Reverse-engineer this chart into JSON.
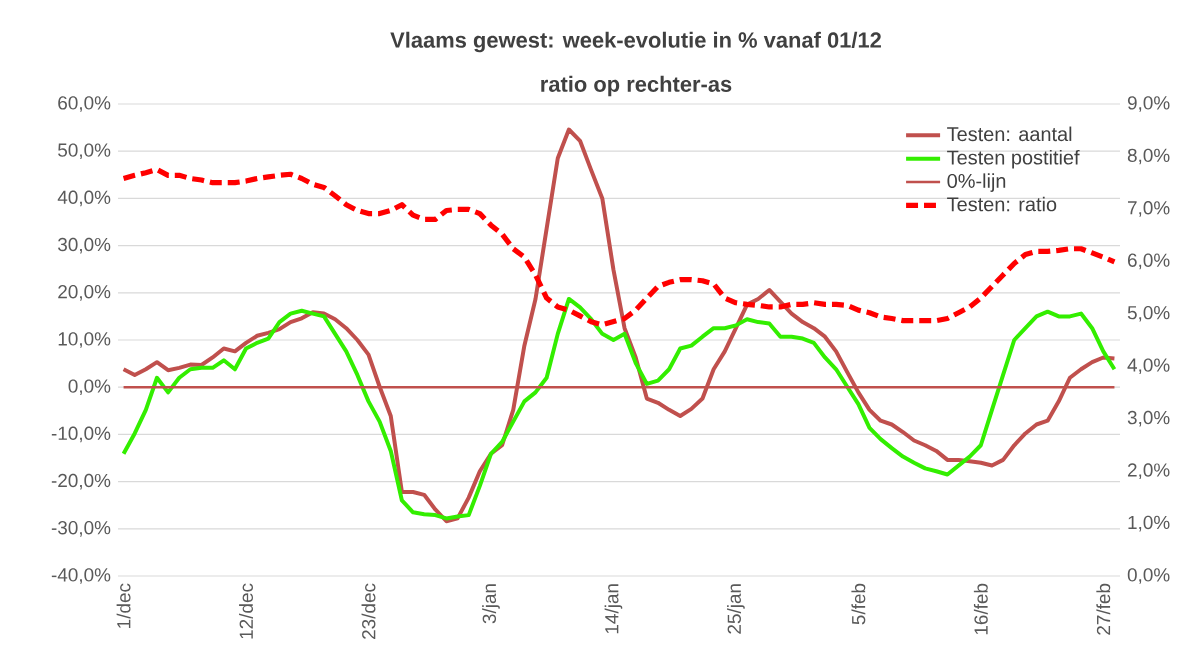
{
  "chart_data": {
    "type": "line",
    "title": "Vlaams gewest:  week-evolutie in %  vanaf 01/12",
    "subtitle": "ratio op rechter-as",
    "categories": [
      "1/dec",
      null,
      null,
      null,
      null,
      null,
      null,
      null,
      null,
      null,
      null,
      "12/dec",
      null,
      null,
      null,
      null,
      null,
      null,
      null,
      null,
      null,
      null,
      "23/dec",
      null,
      null,
      null,
      null,
      null,
      null,
      null,
      null,
      null,
      null,
      "3/jan",
      null,
      null,
      null,
      null,
      null,
      null,
      null,
      null,
      null,
      null,
      "14/jan",
      null,
      null,
      null,
      null,
      null,
      null,
      null,
      null,
      null,
      null,
      "25/jan",
      null,
      null,
      null,
      null,
      null,
      null,
      null,
      null,
      null,
      null,
      "5/feb",
      null,
      null,
      null,
      null,
      null,
      null,
      null,
      null,
      null,
      null,
      "16/feb",
      null,
      null,
      null,
      null,
      null,
      null,
      null,
      null,
      null,
      null,
      "27/feb",
      null
    ],
    "series": [
      {
        "name": "Testen: aantal",
        "color": "#c0504d",
        "line_style": "solid",
        "values": [
          3.8,
          2.6,
          3.8,
          5.3,
          3.6,
          4.1,
          4.8,
          4.7,
          6.3,
          8.2,
          7.6,
          9.4,
          10.9,
          11.5,
          12.3,
          13.8,
          14.6,
          15.9,
          15.6,
          14.4,
          12.5,
          10.0,
          6.9,
          0.1,
          -6.1,
          -22.2,
          -22.2,
          -22.8,
          -25.9,
          -28.4,
          -27.8,
          -23.4,
          -17.8,
          -14.1,
          -12.3,
          -4.8,
          8.8,
          18.7,
          33.6,
          48.5,
          54.6,
          52.2,
          46.0,
          40.0,
          24.9,
          12.5,
          6.3,
          -2.4,
          -3.3,
          -4.8,
          -6.1,
          -4.6,
          -2.4,
          3.8,
          7.6,
          12.5,
          17.5,
          18.7,
          20.6,
          18.1,
          15.6,
          13.8,
          12.5,
          10.7,
          7.6,
          3.2,
          -1.1,
          -4.8,
          -7.1,
          -7.9,
          -9.5,
          -11.3,
          -12.3,
          -13.5,
          -15.4,
          -15.4,
          -15.7,
          -16.0,
          -16.6,
          -15.4,
          -12.3,
          -9.8,
          -7.9,
          -7.1,
          -3.0,
          2.0,
          3.8,
          5.3,
          6.3,
          6.1
        ]
      },
      {
        "name": "Testen postitief",
        "color": "#33ee00",
        "line_style": "solid",
        "values": [
          -14.1,
          -9.8,
          -4.8,
          2.0,
          -1.1,
          2.0,
          3.8,
          4.1,
          4.1,
          5.7,
          3.8,
          8.2,
          9.4,
          10.3,
          13.8,
          15.6,
          16.2,
          15.6,
          15.0,
          11.3,
          7.6,
          2.6,
          -3.0,
          -7.3,
          -13.5,
          -24.0,
          -26.5,
          -26.9,
          -27.1,
          -27.8,
          -27.4,
          -27.1,
          -20.9,
          -14.1,
          -11.6,
          -7.3,
          -3.0,
          -1.1,
          2.0,
          11.3,
          18.7,
          16.9,
          14.4,
          11.3,
          10.0,
          11.3,
          5.1,
          0.7,
          1.4,
          3.8,
          8.2,
          8.8,
          10.7,
          12.5,
          12.5,
          13.1,
          14.4,
          13.8,
          13.5,
          10.7,
          10.7,
          10.3,
          9.4,
          6.3,
          3.8,
          0.1,
          -3.6,
          -8.6,
          -11.0,
          -12.9,
          -14.7,
          -16.0,
          -17.2,
          -17.8,
          -18.5,
          -16.6,
          -14.7,
          -12.3,
          -4.8,
          2.6,
          10.0,
          12.5,
          15.0,
          16.0,
          15.0,
          15.0,
          15.6,
          12.5,
          7.6,
          3.8
        ]
      },
      {
        "name": "0%-lijn",
        "color": "#c0504d",
        "line_style": "solid",
        "values": [
          0,
          0,
          0,
          0,
          0,
          0,
          0,
          0,
          0,
          0,
          0,
          0,
          0,
          0,
          0,
          0,
          0,
          0,
          0,
          0,
          0,
          0,
          0,
          0,
          0,
          0,
          0,
          0,
          0,
          0,
          0,
          0,
          0,
          0,
          0,
          0,
          0,
          0,
          0,
          0,
          0,
          0,
          0,
          0,
          0,
          0,
          0,
          0,
          0,
          0,
          0,
          0,
          0,
          0,
          0,
          0,
          0,
          0,
          0,
          0,
          0,
          0,
          0,
          0,
          0,
          0,
          0,
          0,
          0,
          0,
          0,
          0,
          0,
          0,
          0,
          0,
          0,
          0,
          0,
          0,
          0,
          0,
          0,
          0,
          0,
          0,
          0,
          0,
          0,
          0
        ]
      },
      {
        "name": "Testen: ratio",
        "color": "#ff0000",
        "line_style": "dashed",
        "axis": "y2",
        "values": [
          7.58,
          7.64,
          7.69,
          7.75,
          7.64,
          7.64,
          7.58,
          7.55,
          7.5,
          7.5,
          7.5,
          7.53,
          7.58,
          7.61,
          7.64,
          7.66,
          7.58,
          7.47,
          7.41,
          7.25,
          7.08,
          6.97,
          6.91,
          6.91,
          6.97,
          7.08,
          6.88,
          6.8,
          6.8,
          6.97,
          6.99,
          6.99,
          6.91,
          6.69,
          6.52,
          6.24,
          6.08,
          5.74,
          5.3,
          5.13,
          5.07,
          4.96,
          4.85,
          4.79,
          4.85,
          4.91,
          5.07,
          5.3,
          5.52,
          5.6,
          5.65,
          5.65,
          5.63,
          5.57,
          5.3,
          5.21,
          5.18,
          5.16,
          5.13,
          5.13,
          5.18,
          5.18,
          5.21,
          5.18,
          5.18,
          5.16,
          5.07,
          5.02,
          4.94,
          4.91,
          4.87,
          4.87,
          4.87,
          4.87,
          4.91,
          5.02,
          5.13,
          5.3,
          5.52,
          5.74,
          5.96,
          6.13,
          6.19,
          6.19,
          6.21,
          6.24,
          6.24,
          6.16,
          6.08,
          5.99
        ]
      }
    ],
    "ylim": [
      -40,
      60
    ],
    "yticks": [
      {
        "value": -40,
        "label": "-40,0%"
      },
      {
        "value": -30,
        "label": "-30,0%"
      },
      {
        "value": -20,
        "label": "-20,0%"
      },
      {
        "value": -10,
        "label": "-10,0%"
      },
      {
        "value": 0,
        "label": "0,0%"
      },
      {
        "value": 10,
        "label": "10,0%"
      },
      {
        "value": 20,
        "label": "20,0%"
      },
      {
        "value": 30,
        "label": "30,0%"
      },
      {
        "value": 40,
        "label": "40,0%"
      },
      {
        "value": 50,
        "label": "50,0%"
      },
      {
        "value": 60,
        "label": "60,0%"
      }
    ],
    "y2lim": [
      0,
      9
    ],
    "y2ticks": [
      {
        "value": 0,
        "label": "0,0%"
      },
      {
        "value": 1,
        "label": "1,0%"
      },
      {
        "value": 2,
        "label": "2,0%"
      },
      {
        "value": 3,
        "label": "3,0%"
      },
      {
        "value": 4,
        "label": "4,0%"
      },
      {
        "value": 5,
        "label": "5,0%"
      },
      {
        "value": 6,
        "label": "6,0%"
      },
      {
        "value": 7,
        "label": "7,0%"
      },
      {
        "value": 8,
        "label": "8,0%"
      },
      {
        "value": 9,
        "label": "9,0%"
      }
    ],
    "grid": "y",
    "legend": "top right"
  }
}
